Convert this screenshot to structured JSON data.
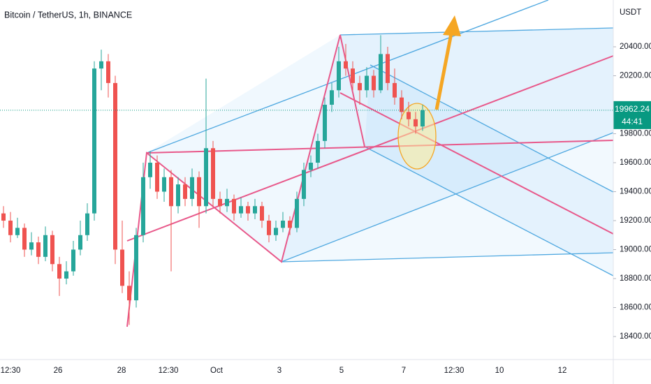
{
  "chart_data": {
    "type": "candlestick",
    "title": "Bitcoin / TetherUS, 1h, BINANCE",
    "unit": "USDT",
    "open": [
      19250,
      19200,
      19100,
      19150,
      19000,
      19050,
      18950,
      19100,
      18900,
      18800,
      18850,
      19000,
      19100,
      19250,
      20250,
      20300,
      20150,
      19000,
      18750,
      18650,
      19100,
      19500,
      19600,
      19400,
      19500,
      19300,
      19450,
      19350,
      19500,
      19300,
      19700,
      19350,
      19300,
      19350,
      19250,
      19300,
      19250,
      19300,
      19200,
      19100,
      19150,
      19200,
      19150,
      19350,
      19550,
      19600,
      19750,
      20000,
      20100,
      20300,
      20250,
      20150,
      20100,
      20200,
      20100,
      20350,
      20150,
      20050,
      19950,
      19900,
      19850
    ],
    "high": [
      19300,
      19260,
      19220,
      19180,
      19120,
      19090,
      19160,
      19130,
      18950,
      18920,
      19060,
      19200,
      19320,
      20300,
      20380,
      20350,
      20200,
      19200,
      18850,
      19150,
      19600,
      19680,
      19650,
      19560,
      19550,
      19500,
      19500,
      19560,
      19540,
      20180,
      19750,
      19400,
      19420,
      19380,
      19360,
      19330,
      19350,
      19330,
      19240,
      19200,
      19260,
      19230,
      19400,
      19600,
      19650,
      19800,
      20050,
      20150,
      20400,
      20420,
      20300,
      20200,
      20260,
      20240,
      20480,
      20400,
      20250,
      20100,
      20020,
      19950,
      20000
    ],
    "low": [
      19150,
      19050,
      19080,
      18950,
      18960,
      18900,
      18920,
      18850,
      18680,
      18760,
      18820,
      18960,
      19060,
      19200,
      20100,
      20050,
      18900,
      18700,
      18480,
      18600,
      19050,
      19420,
      19350,
      19330,
      18850,
      19250,
      19300,
      19300,
      19150,
      19250,
      19300,
      19250,
      19260,
      19200,
      19220,
      19200,
      19210,
      19150,
      19050,
      19060,
      19120,
      19100,
      19120,
      19300,
      19500,
      19560,
      19700,
      19950,
      20050,
      20200,
      20100,
      20000,
      20050,
      20050,
      20080,
      20100,
      20000,
      19900,
      19850,
      19800,
      19820
    ],
    "close": [
      19200,
      19100,
      19150,
      19000,
      19050,
      18950,
      19100,
      18900,
      18800,
      18850,
      19000,
      19100,
      19250,
      20250,
      20300,
      20150,
      19000,
      18750,
      18650,
      19100,
      19500,
      19600,
      19400,
      19500,
      19300,
      19450,
      19350,
      19500,
      19300,
      19700,
      19350,
      19300,
      19350,
      19250,
      19300,
      19250,
      19300,
      19200,
      19100,
      19150,
      19200,
      19150,
      19350,
      19550,
      19600,
      19750,
      20000,
      20100,
      20300,
      20250,
      20150,
      20100,
      20200,
      20100,
      20350,
      20150,
      20050,
      19950,
      19900,
      19850,
      19962.24
    ],
    "up_color": "#26a69a",
    "down_color": "#ef5350",
    "xtick_labels": [
      "12:30",
      "26",
      "28",
      "12:30",
      "Oct",
      "3",
      "5",
      "7",
      "12:30",
      "10",
      "12"
    ],
    "ylim": [
      18241,
      20723
    ],
    "yticks": [
      {
        "value": 18400,
        "label": "18400.00"
      },
      {
        "value": 18600,
        "label": "18600.00"
      },
      {
        "value": 18800,
        "label": "18800.00"
      },
      {
        "value": 19000,
        "label": "19000.00"
      },
      {
        "value": 19200,
        "label": "19200.00"
      },
      {
        "value": 19400,
        "label": "19400.00"
      },
      {
        "value": 19600,
        "label": "19600.00"
      },
      {
        "value": 19800,
        "label": "19800.00"
      },
      {
        "value": 20200,
        "label": "20200.00"
      },
      {
        "value": 20400,
        "label": "20400.00"
      }
    ],
    "countdown": "44:41",
    "last_price_color": "#089981"
  }
}
